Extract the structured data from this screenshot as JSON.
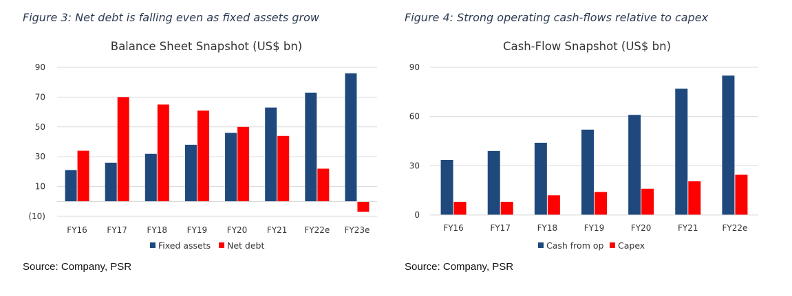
{
  "figures": [
    {
      "caption": "Figure 3: Net debt is falling even as fixed assets grow",
      "source": "Source: Company, PSR",
      "chart_data": {
        "type": "bar",
        "title": "Balance Sheet Snapshot (US$ bn)",
        "xlabel": "",
        "ylabel": "",
        "categories": [
          "FY16",
          "FY17",
          "FY18",
          "FY19",
          "FY20",
          "FY21",
          "FY22e",
          "FY23e"
        ],
        "yticks": [
          -10,
          10,
          30,
          50,
          70,
          90
        ],
        "ytick_labels": [
          "(10)",
          "10",
          "30",
          "50",
          "70",
          "90"
        ],
        "ylim": [
          -10,
          90
        ],
        "grid": true,
        "legend": "bottom",
        "series": [
          {
            "name": "Fixed assets",
            "color": "#1f497d",
            "values": [
              21,
              26,
              32,
              38,
              46,
              63,
              73,
              86
            ]
          },
          {
            "name": "Net debt",
            "color": "#ff0000",
            "values": [
              34,
              70,
              65,
              61,
              50,
              44,
              22,
              -7
            ]
          }
        ]
      }
    },
    {
      "caption": "Figure 4: Strong operating cash-flows relative to capex",
      "source": "Source: Company, PSR",
      "chart_data": {
        "type": "bar",
        "title": "Cash-Flow Snapshot (US$ bn)",
        "xlabel": "",
        "ylabel": "",
        "categories": [
          "FY16",
          "FY17",
          "FY18",
          "FY19",
          "FY20",
          "FY21",
          "FY22e"
        ],
        "yticks": [
          0,
          30,
          60,
          90
        ],
        "ytick_labels": [
          "0",
          "30",
          "60",
          "90"
        ],
        "ylim": [
          0,
          90
        ],
        "grid": true,
        "legend": "bottom",
        "series": [
          {
            "name": "Cash from op",
            "color": "#1f497d",
            "values": [
              33.5,
              39,
              44,
              52,
              61,
              77,
              85
            ]
          },
          {
            "name": "Capex",
            "color": "#ff0000",
            "values": [
              8,
              8,
              12,
              14,
              16,
              20.5,
              24.5
            ]
          }
        ]
      }
    }
  ]
}
